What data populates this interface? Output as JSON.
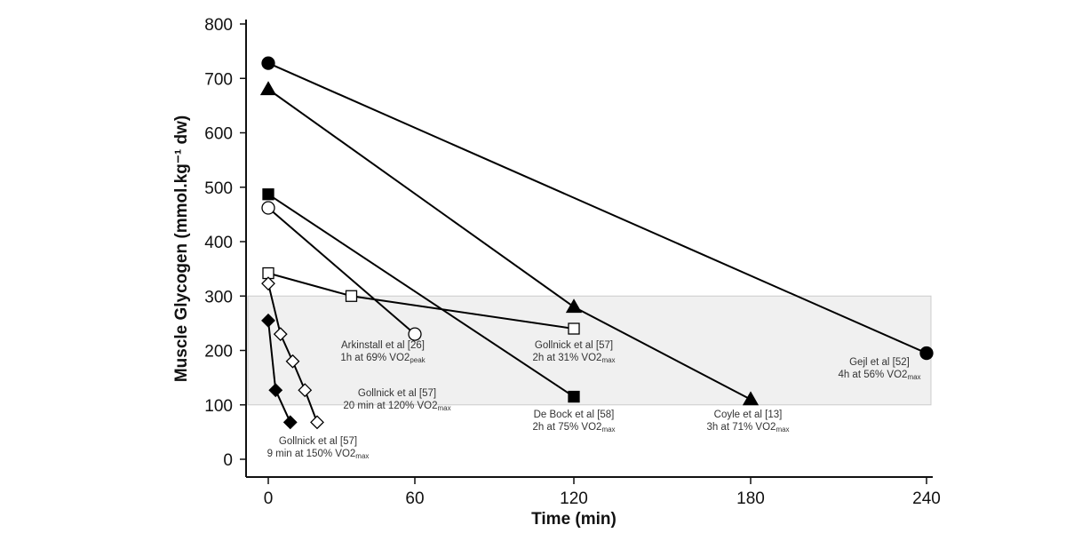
{
  "chart_data": {
    "type": "line",
    "xlabel": "Time (min)",
    "ylabel": "Muscle Glycogen (mmol.kg⁻¹ dw)",
    "xlim": [
      0,
      240
    ],
    "ylim": [
      0,
      800
    ],
    "xticks": [
      0,
      60,
      120,
      180,
      240
    ],
    "yticks": [
      0,
      100,
      200,
      300,
      400,
      500,
      600,
      700,
      800
    ],
    "grid": false,
    "shaded_band": {
      "y": [
        100,
        300
      ],
      "color": "#f0f0f0"
    },
    "series": [
      {
        "marker": "filled-circle",
        "x": [
          0,
          240
        ],
        "y": [
          728,
          195
        ],
        "label": [
          "Gejl et al [52]",
          "4h at 56% VO2",
          "max"
        ]
      },
      {
        "marker": "filled-triangle",
        "x": [
          0,
          120,
          180
        ],
        "y": [
          680,
          280,
          110
        ],
        "label": [
          "Coyle et al [13]",
          "3h at 71% VO2",
          "max"
        ]
      },
      {
        "marker": "filled-square",
        "x": [
          0,
          120
        ],
        "y": [
          487,
          115
        ],
        "label": [
          "De Bock et al [58]",
          "2h at 75% VO2",
          "max"
        ]
      },
      {
        "marker": "open-circle",
        "x": [
          0,
          60
        ],
        "y": [
          462,
          230
        ],
        "label": [
          "Arkinstall et al [26]",
          "1h at 69% VO2",
          "peak"
        ]
      },
      {
        "marker": "open-square",
        "x": [
          0,
          34,
          120
        ],
        "y": [
          342,
          300,
          240
        ],
        "label": [
          "Gollnick et al [57]",
          "2h at 31% VO2",
          "max"
        ]
      },
      {
        "marker": "open-diamond",
        "x": [
          0,
          5,
          10,
          15,
          20
        ],
        "y": [
          323,
          230,
          180,
          127,
          68
        ],
        "label": [
          "Gollnick et al [57]",
          "20 min at 120% VO2",
          "max"
        ]
      },
      {
        "marker": "filled-diamond",
        "x": [
          0,
          3,
          9
        ],
        "y": [
          255,
          127,
          68
        ],
        "label": [
          "Gollnick et al [57]",
          "9 min at 150% VO2",
          "max"
        ]
      }
    ]
  }
}
